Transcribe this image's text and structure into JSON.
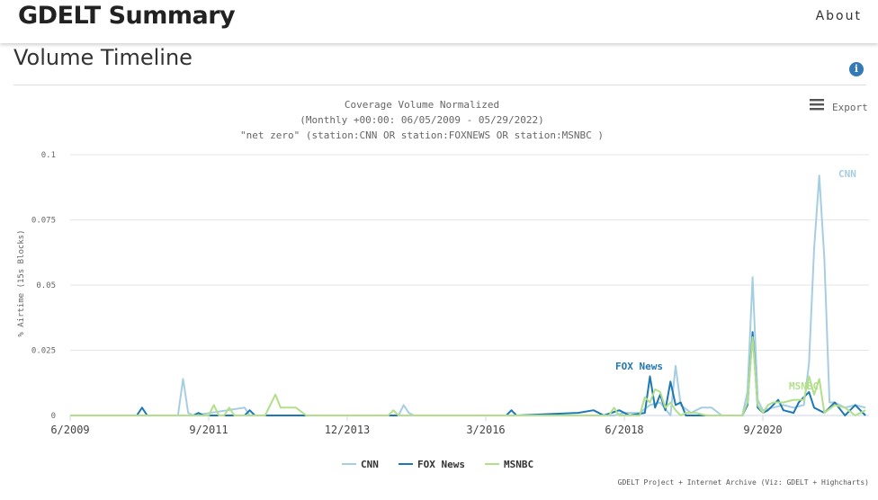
{
  "header": {
    "brand": "GDELT Summary",
    "about": "About"
  },
  "section": {
    "title": "Volume Timeline"
  },
  "export_label": "Export",
  "credit": "GDELT Project + Internet Archive (Viz: GDELT + Highcharts)",
  "colors": {
    "cnn": "#a6cee3",
    "foxnews": "#1f78b4",
    "msnbc": "#b2df8a"
  },
  "chart_data": {
    "type": "line",
    "title_lines": [
      "Coverage Volume Normalized",
      "(Monthly +00:00: 06/05/2009 - 05/29/2022)",
      "\"net zero\" (station:CNN OR station:FOXNEWS OR station:MSNBC )"
    ],
    "ylabel": "% Airtime (15s Blocks)",
    "ylim": [
      0,
      0.1
    ],
    "y_ticks": [
      "0",
      "0.025",
      "0.05",
      "0.075",
      "0.1"
    ],
    "x_ticks": [
      "6/2009",
      "9/2011",
      "12/2013",
      "3/2016",
      "6/2018",
      "9/2020"
    ],
    "xlim": [
      "2009-06",
      "2022-05"
    ],
    "legend": [
      "CNN",
      "FOX News",
      "MSNBC"
    ],
    "series": [
      {
        "name": "CNN",
        "points": [
          [
            "2011-03",
            0.0
          ],
          [
            "2011-04",
            0.014
          ],
          [
            "2011-05",
            0.001
          ],
          [
            "2011-06",
            0.0
          ],
          [
            "2012-04",
            0.003
          ],
          [
            "2012-05",
            0.0
          ],
          [
            "2014-10",
            0.0
          ],
          [
            "2014-11",
            0.004
          ],
          [
            "2014-12",
            0.001
          ],
          [
            "2015-01",
            0.0
          ],
          [
            "2018-04",
            0.0
          ],
          [
            "2018-06",
            0.001
          ],
          [
            "2018-09",
            0.001
          ],
          [
            "2018-11",
            0.004
          ],
          [
            "2019-01",
            0.005
          ],
          [
            "2019-03",
            0.0
          ],
          [
            "2019-04",
            0.019
          ],
          [
            "2019-05",
            0.004
          ],
          [
            "2019-07",
            0.001
          ],
          [
            "2019-09",
            0.003
          ],
          [
            "2019-11",
            0.003
          ],
          [
            "2020-01",
            0.0
          ],
          [
            "2020-05",
            0.0
          ],
          [
            "2020-06",
            0.009
          ],
          [
            "2020-07",
            0.053
          ],
          [
            "2020-08",
            0.006
          ],
          [
            "2020-09",
            0.002
          ],
          [
            "2020-11",
            0.003
          ],
          [
            "2021-01",
            0.004
          ],
          [
            "2021-03",
            0.003
          ],
          [
            "2021-05",
            0.004
          ],
          [
            "2021-06",
            0.02
          ],
          [
            "2021-07",
            0.064
          ],
          [
            "2021-08",
            0.092
          ],
          [
            "2021-09",
            0.06
          ],
          [
            "2021-10",
            0.005
          ],
          [
            "2021-11",
            0.005
          ],
          [
            "2022-01",
            0.003
          ],
          [
            "2022-03",
            0.004
          ],
          [
            "2022-05",
            0.003
          ]
        ]
      },
      {
        "name": "FOX News",
        "points": [
          [
            "2010-07",
            0.0
          ],
          [
            "2010-08",
            0.003
          ],
          [
            "2010-09",
            0.0
          ],
          [
            "2011-06",
            0.0
          ],
          [
            "2011-07",
            0.001
          ],
          [
            "2011-08",
            0.0
          ],
          [
            "2012-04",
            0.0
          ],
          [
            "2012-05",
            0.002
          ],
          [
            "2012-06",
            0.0
          ],
          [
            "2016-07",
            0.0
          ],
          [
            "2016-08",
            0.002
          ],
          [
            "2016-09",
            0.0
          ],
          [
            "2017-09",
            0.001
          ],
          [
            "2017-12",
            0.002
          ],
          [
            "2018-02",
            0.0
          ],
          [
            "2018-05",
            0.002
          ],
          [
            "2018-07",
            0.0
          ],
          [
            "2018-10",
            0.001
          ],
          [
            "2018-11",
            0.015
          ],
          [
            "2018-12",
            0.003
          ],
          [
            "2019-01",
            0.008
          ],
          [
            "2019-02",
            0.002
          ],
          [
            "2019-03",
            0.013
          ],
          [
            "2019-04",
            0.004
          ],
          [
            "2019-05",
            0.005
          ],
          [
            "2019-06",
            0.0
          ],
          [
            "2020-05",
            0.0
          ],
          [
            "2020-06",
            0.004
          ],
          [
            "2020-07",
            0.032
          ],
          [
            "2020-08",
            0.003
          ],
          [
            "2020-09",
            0.001
          ],
          [
            "2020-10",
            0.002
          ],
          [
            "2020-12",
            0.006
          ],
          [
            "2021-01",
            0.002
          ],
          [
            "2021-03",
            0.001
          ],
          [
            "2021-04",
            0.005
          ],
          [
            "2021-05",
            0.007
          ],
          [
            "2021-06",
            0.009
          ],
          [
            "2021-07",
            0.003
          ],
          [
            "2021-09",
            0.001
          ],
          [
            "2021-11",
            0.005
          ],
          [
            "2022-01",
            0.0
          ],
          [
            "2022-03",
            0.004
          ]
        ]
      },
      {
        "name": "MSNBC",
        "points": [
          [
            "2011-09",
            0.0
          ],
          [
            "2011-10",
            0.004
          ],
          [
            "2011-11",
            0.0
          ],
          [
            "2011-12",
            0.0
          ],
          [
            "2012-01",
            0.003
          ],
          [
            "2012-02",
            0.0
          ],
          [
            "2012-08",
            0.0
          ],
          [
            "2012-10",
            0.008
          ],
          [
            "2012-11",
            0.003
          ],
          [
            "2013-02",
            0.003
          ],
          [
            "2013-04",
            0.0
          ],
          [
            "2014-08",
            0.0
          ],
          [
            "2014-09",
            0.002
          ],
          [
            "2014-10",
            0.0
          ],
          [
            "2018-03",
            0.0
          ],
          [
            "2018-04",
            0.003
          ],
          [
            "2018-05",
            0.0
          ],
          [
            "2018-09",
            0.0
          ],
          [
            "2018-10",
            0.007
          ],
          [
            "2018-11",
            0.005
          ],
          [
            "2018-12",
            0.01
          ],
          [
            "2019-01",
            0.009
          ],
          [
            "2019-02",
            0.003
          ],
          [
            "2019-03",
            0.005
          ],
          [
            "2019-04",
            0.002
          ],
          [
            "2019-05",
            0.0
          ],
          [
            "2019-06",
            0.001
          ],
          [
            "2019-08",
            0.001
          ],
          [
            "2019-10",
            0.0
          ],
          [
            "2020-05",
            0.0
          ],
          [
            "2020-06",
            0.005
          ],
          [
            "2020-07",
            0.03
          ],
          [
            "2020-08",
            0.004
          ],
          [
            "2020-09",
            0.001
          ],
          [
            "2020-10",
            0.004
          ],
          [
            "2020-11",
            0.005
          ],
          [
            "2021-01",
            0.005
          ],
          [
            "2021-03",
            0.006
          ],
          [
            "2021-05",
            0.006
          ],
          [
            "2021-06",
            0.015
          ],
          [
            "2021-07",
            0.008
          ],
          [
            "2021-08",
            0.014
          ],
          [
            "2021-09",
            0.001
          ],
          [
            "2021-11",
            0.004
          ],
          [
            "2022-01",
            0.003
          ],
          [
            "2022-03",
            0.0
          ],
          [
            "2022-05",
            0.002
          ]
        ]
      }
    ],
    "series_labels": [
      "CNN",
      "FOX News",
      "MSNBC"
    ]
  }
}
